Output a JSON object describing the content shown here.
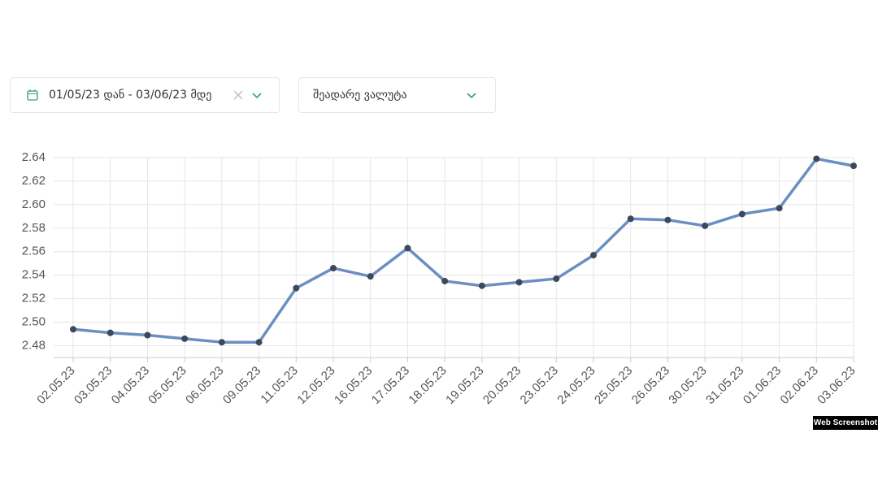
{
  "filters": {
    "date_range": "01/05/23 დან - 03/06/23 მდე",
    "compare_currency": "შეადარე ვალუტა"
  },
  "watermark": "Web Screenshot",
  "chart_data": {
    "type": "line",
    "categories": [
      "02.05.23",
      "03.05.23",
      "04.05.23",
      "05.05.23",
      "06.05.23",
      "09.05.23",
      "11.05.23",
      "12.05.23",
      "16.05.23",
      "17.05.23",
      "18.05.23",
      "19.05.23",
      "20.05.23",
      "23.05.23",
      "24.05.23",
      "25.05.23",
      "26.05.23",
      "30.05.23",
      "31.05.23",
      "01.06.23",
      "02.06.23",
      "03.06.23"
    ],
    "values": [
      2.494,
      2.491,
      2.489,
      2.486,
      2.483,
      2.483,
      2.529,
      2.546,
      2.539,
      2.563,
      2.535,
      2.531,
      2.534,
      2.537,
      2.557,
      2.588,
      2.587,
      2.582,
      2.592,
      2.597,
      2.639,
      2.633
    ],
    "color": "#6b8fc2",
    "marker_color": "#3e4859",
    "ylim": [
      2.47,
      2.64
    ],
    "yticks": [
      2.48,
      {
        "value": 2.5,
        "label": "2.50"
      },
      2.52,
      2.54,
      2.56,
      2.58,
      {
        "value": 2.6,
        "label": "2.60"
      },
      2.62,
      2.64
    ],
    "grid": true
  }
}
